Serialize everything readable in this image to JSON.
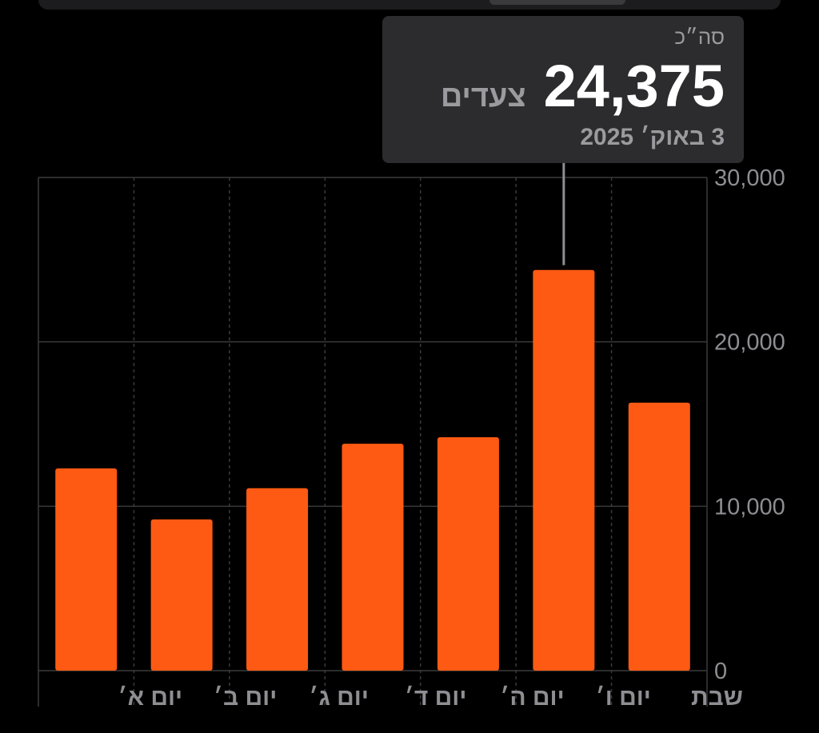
{
  "chart_data": {
    "type": "bar",
    "categories": [
      "יום א׳",
      "יום ב׳",
      "יום ג׳",
      "יום ד׳",
      "יום ה׳",
      "יום ו׳",
      "שבת"
    ],
    "values": [
      12300,
      9200,
      11100,
      13800,
      14200,
      24375,
      16300
    ],
    "ylim": [
      0,
      30000
    ],
    "yticks": [
      0,
      10000,
      20000,
      30000
    ],
    "ytick_labels": [
      "0",
      "10,000",
      "20,000",
      "30,000"
    ],
    "highlight_index": 5,
    "grid": true,
    "bar_color": "#ff5a13",
    "grid_color": "#3a3a3c",
    "axis_label_color": "#8e8e93"
  },
  "tooltip": {
    "label": "סה״כ",
    "value": "24,375",
    "unit": "צעדים",
    "date": "3 באוק׳ 2025",
    "background": "#2c2c2e"
  }
}
